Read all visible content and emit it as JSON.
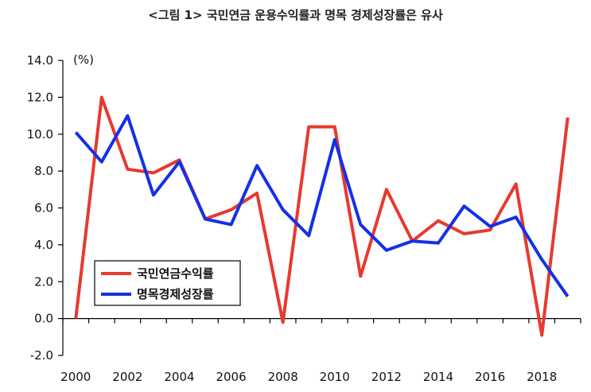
{
  "chart_data": {
    "type": "line",
    "title": "<그림 1> 국민연금 운용수익률과 명목 경제성장률은 유사",
    "ylabel": "(%)",
    "xlabel": "",
    "ylim": [
      -2.0,
      14.0
    ],
    "y_ticks": [
      "14.0",
      "12.0",
      "10.0",
      "8.0",
      "6.0",
      "4.0",
      "2.0",
      "0.0",
      "-2.0"
    ],
    "x": [
      2000,
      2001,
      2002,
      2003,
      2004,
      2005,
      2006,
      2007,
      2008,
      2009,
      2010,
      2011,
      2012,
      2013,
      2014,
      2015,
      2016,
      2017,
      2018,
      2019
    ],
    "x_tick_labels": [
      "2000",
      "2002",
      "2004",
      "2006",
      "2008",
      "2010",
      "2012",
      "2014",
      "2016",
      "2018"
    ],
    "grid": false,
    "legend_position": "bottom-left",
    "series": [
      {
        "name": "국민연금수익률",
        "color": "#e8392e",
        "values": [
          0.0,
          12.0,
          8.1,
          7.9,
          8.6,
          5.4,
          5.9,
          6.8,
          -0.2,
          10.4,
          10.4,
          2.3,
          7.0,
          4.2,
          5.3,
          4.6,
          4.8,
          7.3,
          -0.9,
          10.9
        ]
      },
      {
        "name": "명목경제성장률",
        "color": "#1431e6",
        "values": [
          10.1,
          8.5,
          11.0,
          6.7,
          8.5,
          5.4,
          5.1,
          8.3,
          5.9,
          4.5,
          9.7,
          5.1,
          3.7,
          4.2,
          4.1,
          6.1,
          5.0,
          5.5,
          3.2,
          1.2
        ]
      }
    ]
  }
}
